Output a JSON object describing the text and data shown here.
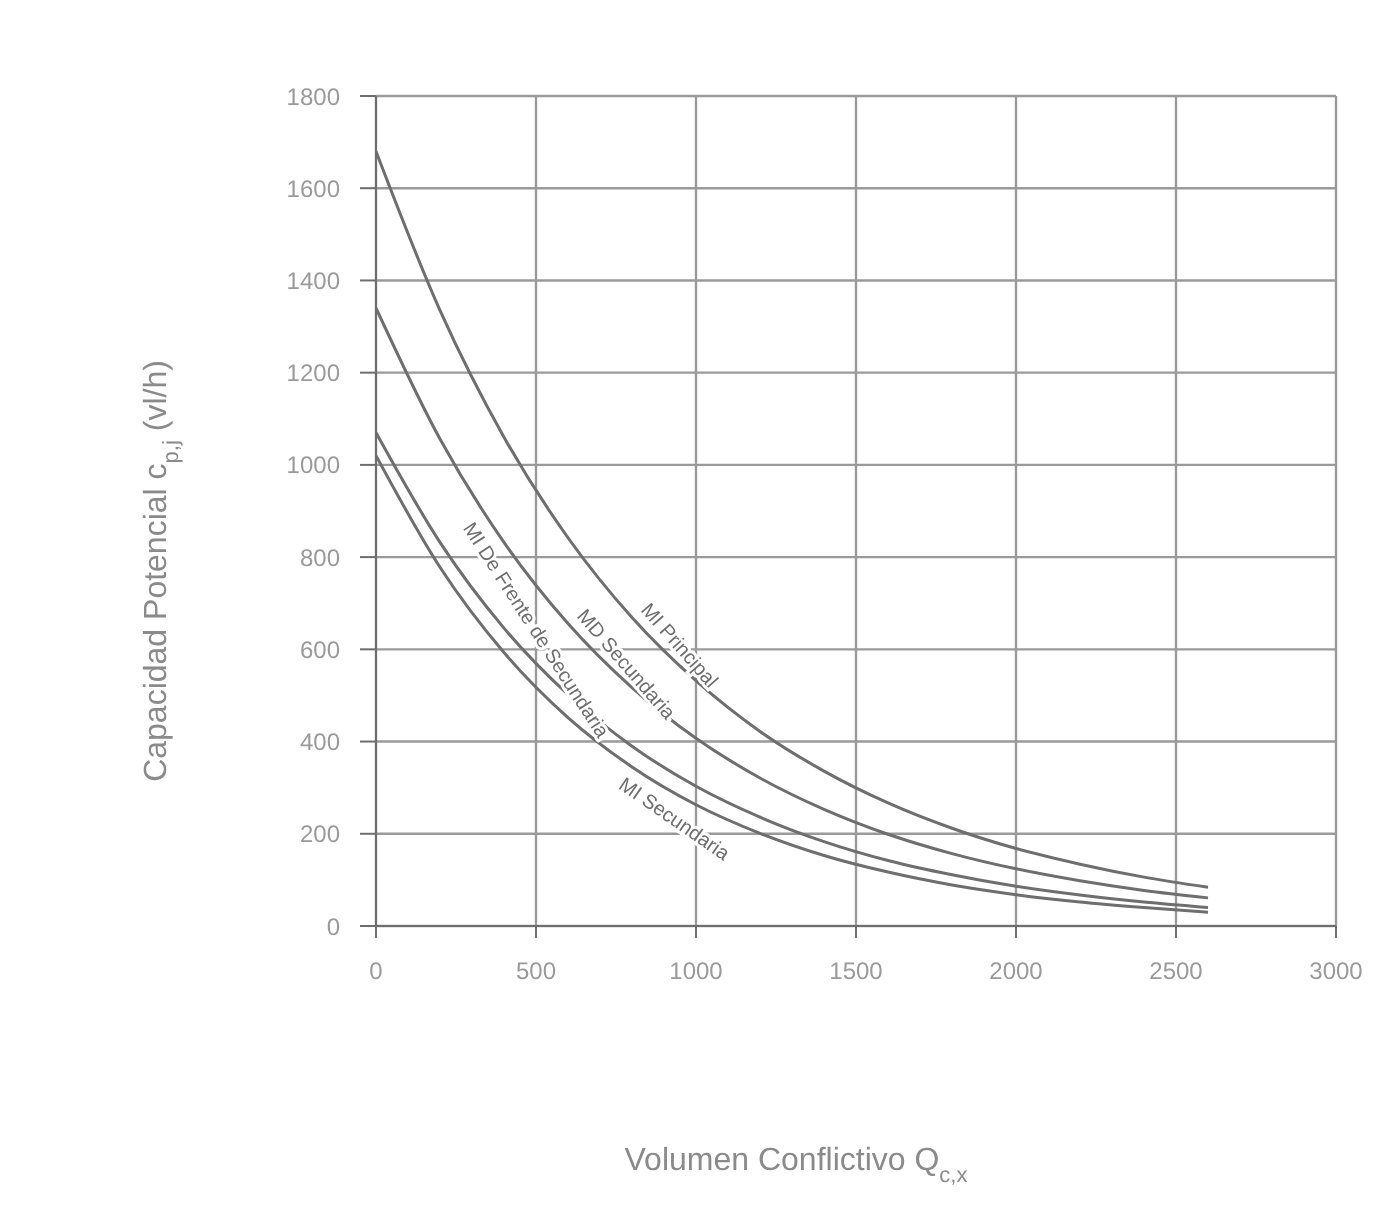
{
  "chart_data": {
    "type": "line",
    "xlabel": "Volumen Conflictivo Q$_{c,x}$",
    "ylabel": "Capacidad Potencial c$_{p,j}$ (vl/h)",
    "x": [
      0,
      200,
      400,
      600,
      800,
      1000,
      1200,
      1400,
      1600,
      1800,
      2000,
      2200,
      2400,
      2600
    ],
    "series": [
      {
        "name": "MI Principal",
        "color": "#6e6e6e",
        "values": [
          1680,
          1335,
          1060,
          842,
          669,
          532,
          422,
          336,
          267,
          212,
          168,
          134,
          106,
          84
        ]
      },
      {
        "name": "MD Secundaria",
        "color": "#6e6e6e",
        "values": [
          1340,
          1056,
          832,
          656,
          517,
          407,
          321,
          253,
          199,
          157,
          124,
          98,
          77,
          61
        ]
      },
      {
        "name": "MI De Frente de Secundaria",
        "color": "#6e6e6e",
        "values": [
          1070,
          832,
          646,
          502,
          390,
          303,
          236,
          183,
          142,
          111,
          86,
          67,
          52,
          40
        ]
      },
      {
        "name": "MI Secundaria",
        "color": "#6e6e6e",
        "values": [
          1020,
          778,
          593,
          452,
          345,
          263,
          201,
          153,
          117,
          89,
          68,
          52,
          40,
          30
        ]
      }
    ],
    "xlim": [
      0,
      3000
    ],
    "xticks": [
      0,
      500,
      1000,
      1500,
      2000,
      2500,
      3000
    ],
    "ylim": [
      0,
      1800
    ],
    "yticks": [
      0,
      200,
      400,
      600,
      800,
      1000,
      1200,
      1400,
      1600,
      1800
    ],
    "grid": true,
    "marker": "none",
    "line_style": "solid"
  }
}
